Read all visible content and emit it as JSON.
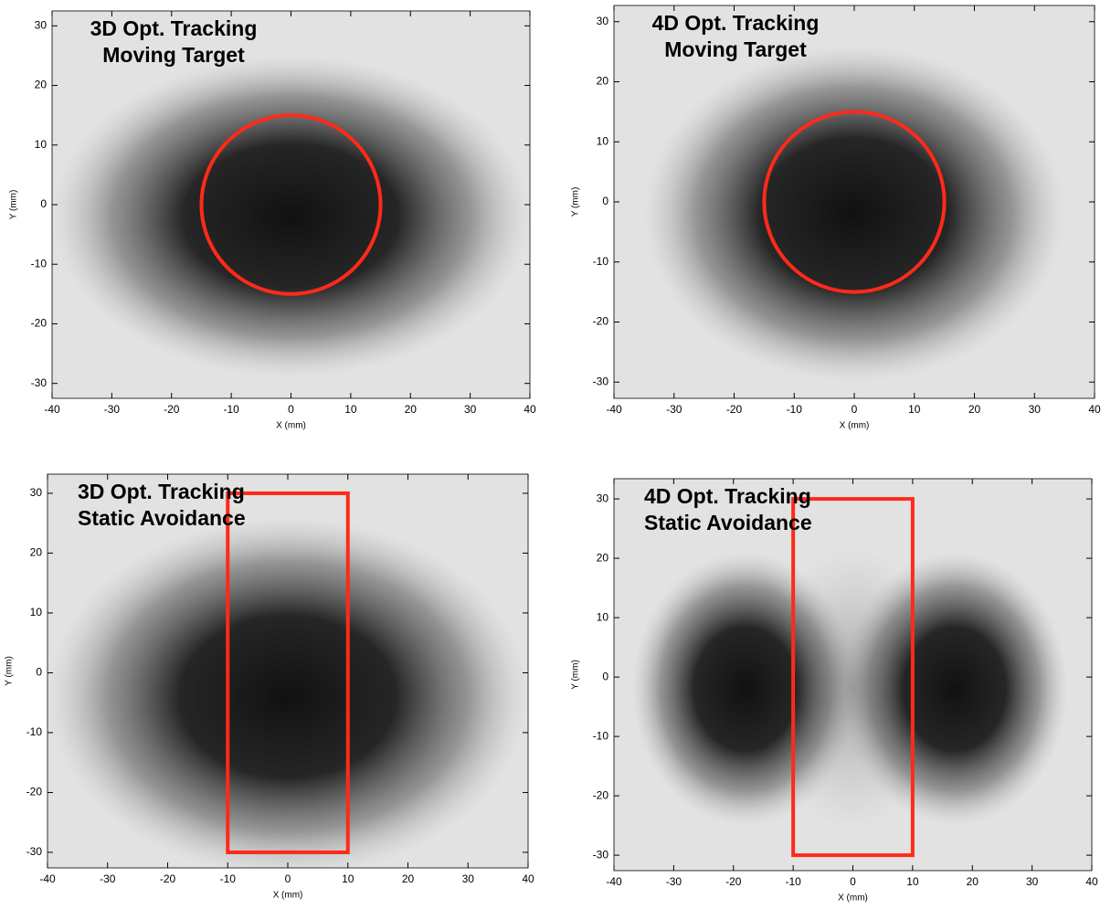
{
  "chart_data": [
    {
      "type": "image",
      "title_lines": [
        "3D Opt. Tracking",
        "Moving Target"
      ],
      "xlabel": "X (mm)",
      "ylabel": "Y (mm)",
      "xlim": [
        -40,
        40
      ],
      "ylim": [
        -32.5,
        32.5
      ],
      "xticks": [
        -40,
        -30,
        -20,
        -10,
        0,
        10,
        20,
        30,
        40
      ],
      "yticks": [
        -30,
        -20,
        -10,
        0,
        10,
        20,
        30
      ],
      "contour": {
        "shape": "circle",
        "center": [
          0,
          0
        ],
        "radius": 15,
        "color": "#ff2a1a"
      }
    },
    {
      "type": "image",
      "title_lines": [
        "4D Opt. Tracking",
        "Moving Target"
      ],
      "xlabel": "X (mm)",
      "ylabel": "Y (mm)",
      "xlim": [
        -40,
        40
      ],
      "ylim": [
        -32.7,
        32.7
      ],
      "xticks": [
        -40,
        -30,
        -20,
        -10,
        0,
        10,
        20,
        30,
        40
      ],
      "yticks": [
        -30,
        -20,
        -10,
        0,
        10,
        20,
        30
      ],
      "contour": {
        "shape": "circle",
        "center": [
          0,
          0
        ],
        "radius": 15,
        "color": "#ff2a1a"
      }
    },
    {
      "type": "image",
      "title_lines": [
        "3D Opt. Tracking",
        "Static Avoidance"
      ],
      "xlabel": "X (mm)",
      "ylabel": "Y (mm)",
      "xlim": [
        -40,
        40
      ],
      "ylim": [
        -32.6,
        33.2
      ],
      "xticks": [
        -40,
        -30,
        -20,
        -10,
        0,
        10,
        20,
        30,
        40
      ],
      "yticks": [
        -30,
        -20,
        -10,
        0,
        10,
        20,
        30
      ],
      "contour": {
        "shape": "rectangle",
        "x": [
          -10,
          10
        ],
        "y": [
          -30,
          30
        ],
        "color": "#ff2a1a"
      }
    },
    {
      "type": "image",
      "title_lines": [
        "4D Opt. Tracking",
        "Static Avoidance"
      ],
      "xlabel": "X (mm)",
      "ylabel": "Y (mm)",
      "xlim": [
        -40,
        40
      ],
      "ylim": [
        -32.6,
        33.4
      ],
      "xticks": [
        -40,
        -30,
        -20,
        -10,
        0,
        10,
        20,
        30,
        40
      ],
      "yticks": [
        -30,
        -20,
        -10,
        0,
        10,
        20,
        30
      ],
      "contour": {
        "shape": "rectangle",
        "x": [
          -10,
          10
        ],
        "y": [
          -30,
          30
        ],
        "color": "#ff2a1a"
      }
    }
  ]
}
